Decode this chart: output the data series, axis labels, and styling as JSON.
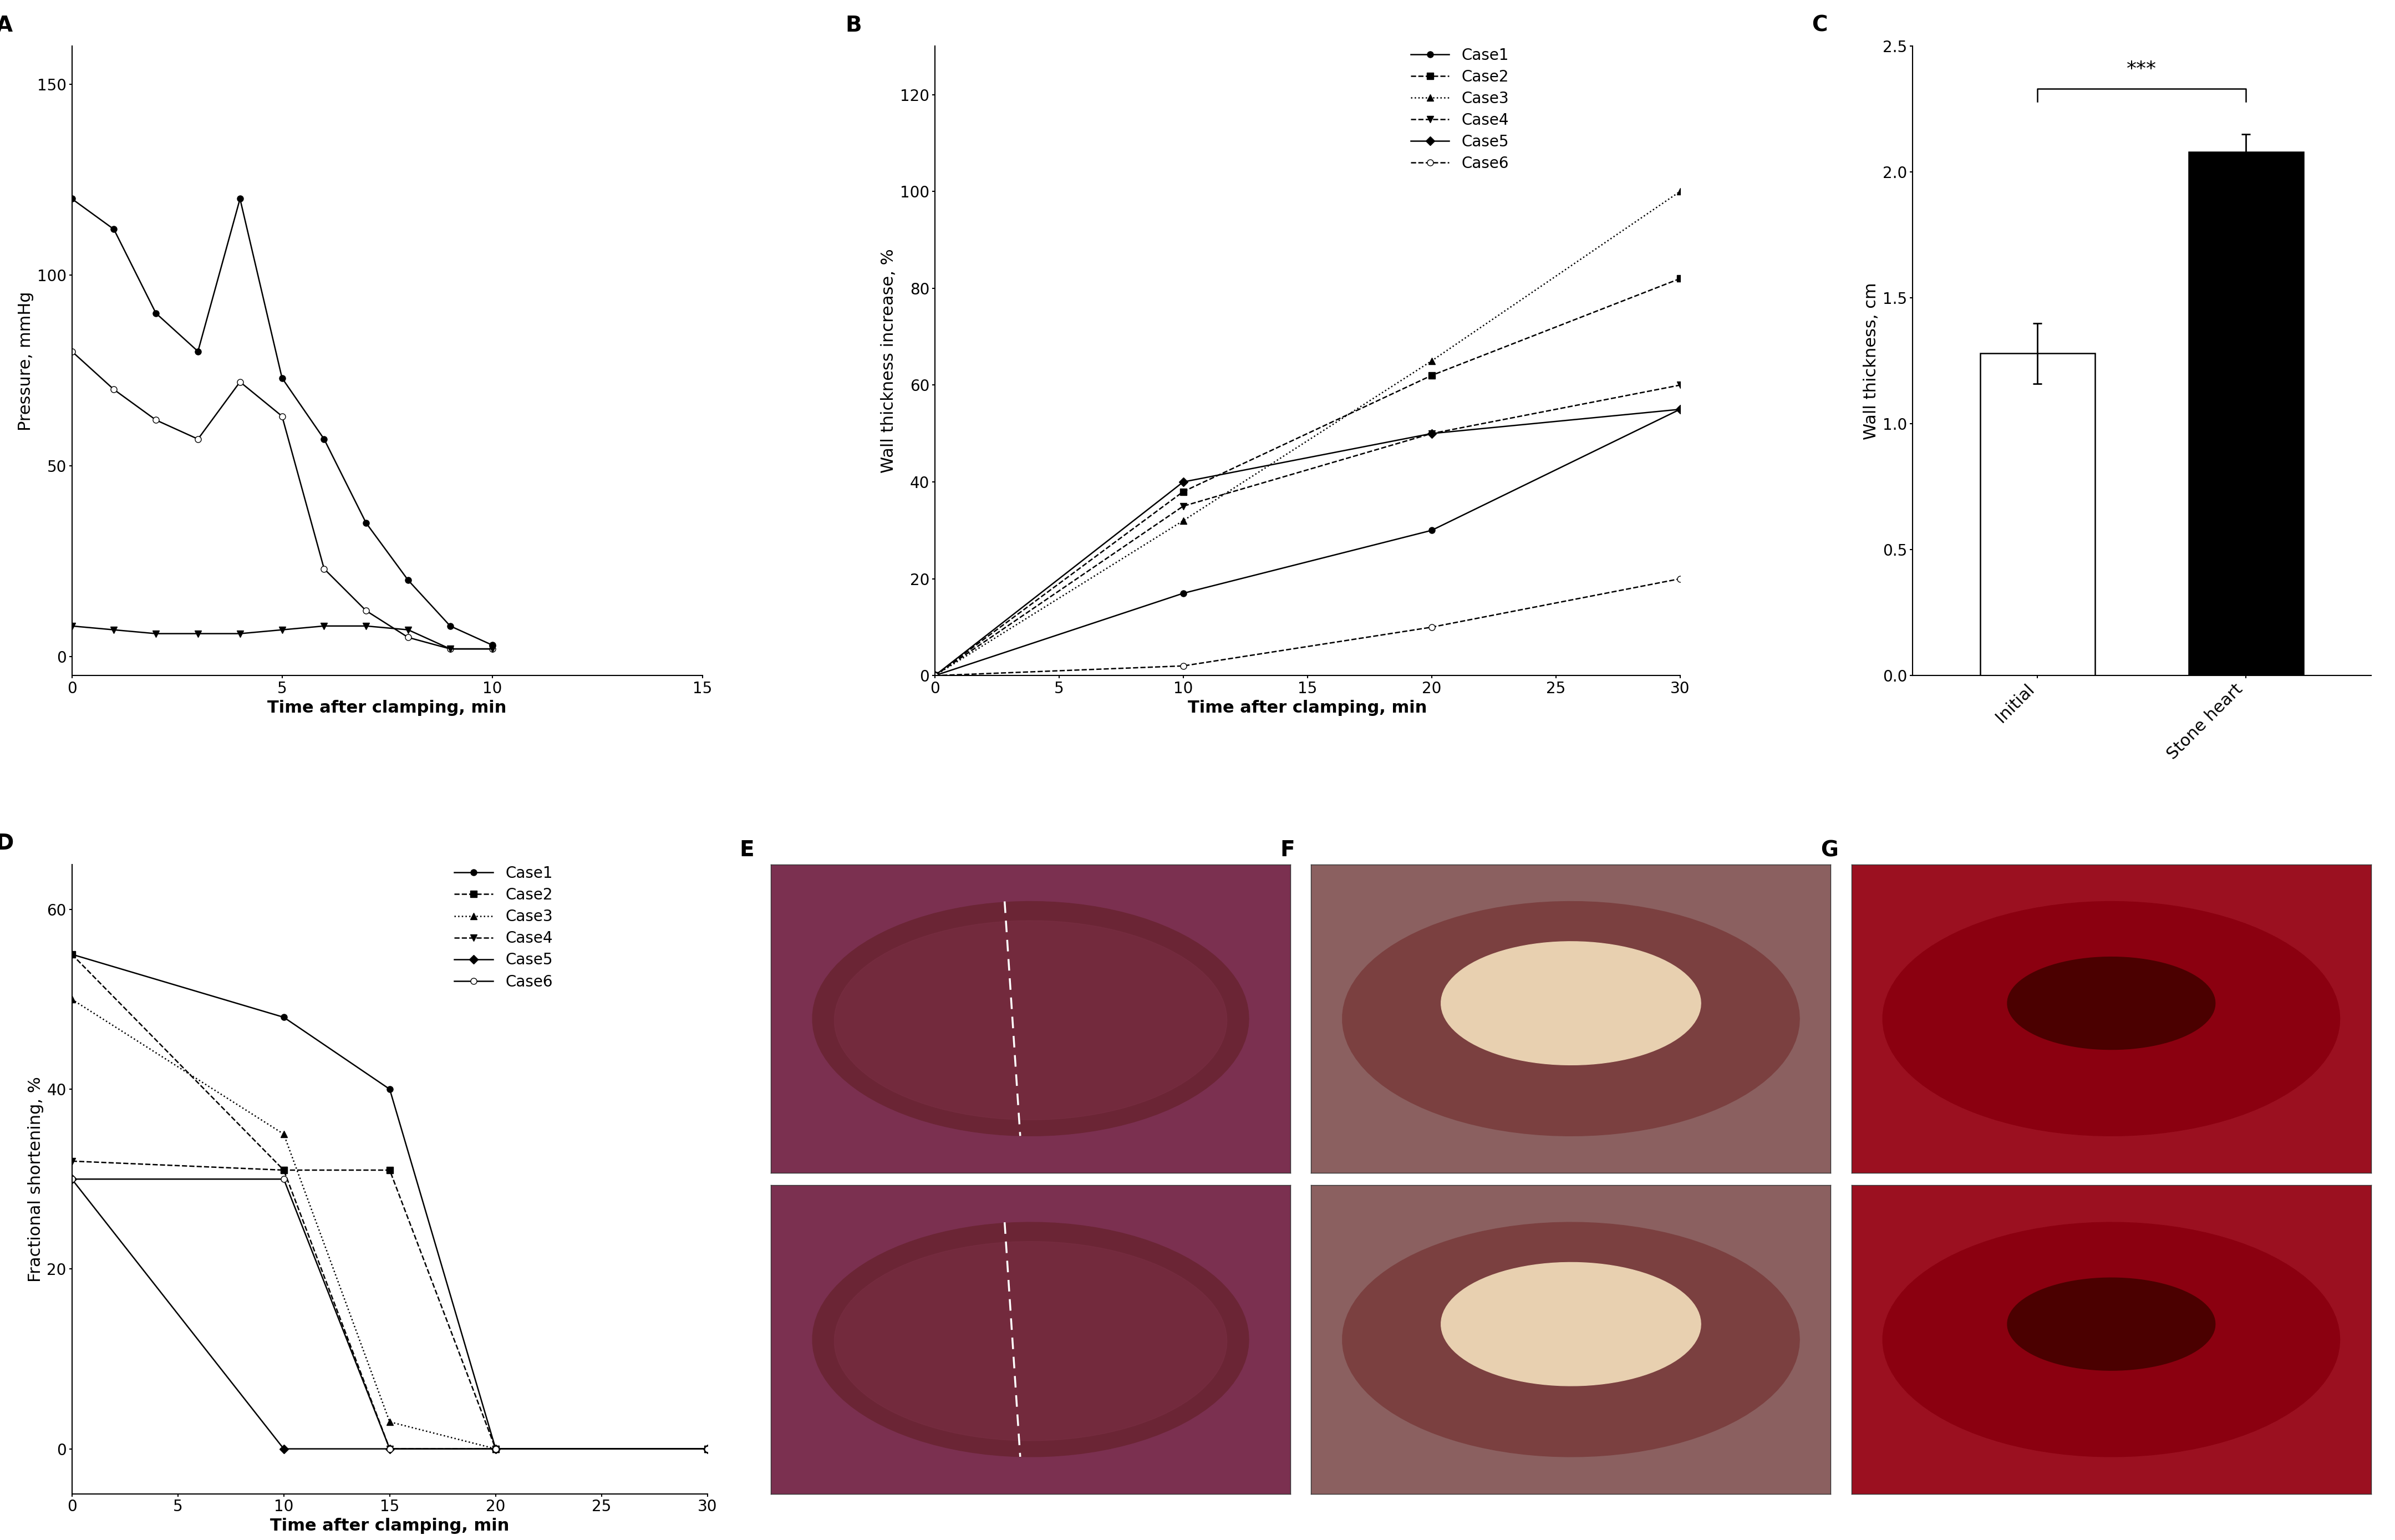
{
  "panel_A": {
    "label": "A",
    "xlabel": "Time after clamping, min",
    "ylabel": "Pressure, mmHg",
    "xlim": [
      0,
      15
    ],
    "ylim": [
      -5,
      160
    ],
    "xticks": [
      0,
      5,
      10,
      15
    ],
    "yticks": [
      0,
      50,
      100,
      150
    ],
    "series": [
      {
        "x": [
          0,
          1,
          2,
          3,
          4,
          5,
          6,
          7,
          8,
          9,
          10
        ],
        "y": [
          120,
          112,
          90,
          80,
          120,
          73,
          57,
          35,
          20,
          8,
          3
        ],
        "marker": "o",
        "markersize": 8,
        "markerfacecolor": "black",
        "linestyle": "-",
        "color": "black",
        "label": "filled_circle"
      },
      {
        "x": [
          0,
          1,
          2,
          3,
          4,
          5,
          6,
          7,
          8,
          9,
          10
        ],
        "y": [
          80,
          70,
          62,
          57,
          72,
          63,
          23,
          12,
          5,
          2,
          2
        ],
        "marker": "o",
        "markersize": 8,
        "markerfacecolor": "white",
        "linestyle": "-",
        "color": "black",
        "label": "open_circle"
      },
      {
        "x": [
          0,
          1,
          2,
          3,
          4,
          5,
          6,
          7,
          8,
          9,
          10
        ],
        "y": [
          8,
          7,
          6,
          6,
          6,
          7,
          8,
          8,
          7,
          2,
          2
        ],
        "marker": "v",
        "markersize": 8,
        "markerfacecolor": "black",
        "linestyle": "-",
        "color": "black",
        "label": "filled_triangle_down"
      }
    ]
  },
  "panel_B": {
    "label": "B",
    "xlabel": "Time after clamping, min",
    "ylabel": "Wall thickness increase, %",
    "xlim": [
      0,
      30
    ],
    "ylim": [
      0,
      130
    ],
    "xticks": [
      0,
      5,
      10,
      15,
      20,
      25,
      30
    ],
    "yticks": [
      0,
      20,
      40,
      60,
      80,
      100,
      120
    ],
    "series": [
      {
        "x": [
          0,
          10,
          20,
          30
        ],
        "y": [
          0,
          17,
          30,
          55
        ],
        "marker": "o",
        "markersize": 8,
        "markerfacecolor": "black",
        "linestyle": "-",
        "color": "black",
        "label": "Case1"
      },
      {
        "x": [
          0,
          10,
          20,
          30
        ],
        "y": [
          0,
          38,
          62,
          82
        ],
        "marker": "s",
        "markersize": 8,
        "markerfacecolor": "black",
        "linestyle": "--",
        "color": "black",
        "label": "Case2"
      },
      {
        "x": [
          0,
          10,
          20,
          30
        ],
        "y": [
          0,
          32,
          65,
          100
        ],
        "marker": "^",
        "markersize": 8,
        "markerfacecolor": "black",
        "linestyle": ":",
        "color": "black",
        "label": "Case3"
      },
      {
        "x": [
          0,
          10,
          20,
          30
        ],
        "y": [
          0,
          35,
          50,
          60
        ],
        "marker": "v",
        "markersize": 8,
        "markerfacecolor": "black",
        "linestyle": "--",
        "color": "black",
        "label": "Case4"
      },
      {
        "x": [
          0,
          10,
          20,
          30
        ],
        "y": [
          0,
          40,
          50,
          55
        ],
        "marker": "D",
        "markersize": 8,
        "markerfacecolor": "black",
        "linestyle": "-",
        "color": "black",
        "label": "Case5"
      },
      {
        "x": [
          0,
          10,
          20,
          30
        ],
        "y": [
          0,
          2,
          10,
          20
        ],
        "marker": "o",
        "markersize": 8,
        "markerfacecolor": "white",
        "linestyle": "--",
        "color": "black",
        "label": "Case6"
      }
    ]
  },
  "panel_C": {
    "label": "C",
    "xlabel": "",
    "ylabel": "Wall thickness, cm",
    "xlabels": [
      "Initial",
      "Stone heart"
    ],
    "values": [
      1.28,
      2.08
    ],
    "errors": [
      0.12,
      0.07
    ],
    "bar_colors": [
      "white",
      "black"
    ],
    "bar_edgecolor": "black",
    "ylim": [
      0,
      2.5
    ],
    "yticks": [
      0.0,
      0.5,
      1.0,
      1.5,
      2.0,
      2.5
    ],
    "significance": "***"
  },
  "panel_D": {
    "label": "D",
    "xlabel": "Time after clamping, min",
    "ylabel": "Fractional shortening, %",
    "xlim": [
      0,
      30
    ],
    "ylim": [
      -5,
      65
    ],
    "xticks": [
      0,
      5,
      10,
      15,
      20,
      25,
      30
    ],
    "yticks": [
      0,
      20,
      40,
      60
    ],
    "series": [
      {
        "x": [
          0,
          10,
          15,
          20,
          30
        ],
        "y": [
          55,
          48,
          40,
          0,
          0
        ],
        "marker": "o",
        "markersize": 8,
        "markerfacecolor": "black",
        "linestyle": "-",
        "color": "black",
        "label": "Case1"
      },
      {
        "x": [
          0,
          10,
          15,
          20,
          30
        ],
        "y": [
          55,
          31,
          31,
          0,
          0
        ],
        "marker": "s",
        "markersize": 8,
        "markerfacecolor": "black",
        "linestyle": "--",
        "color": "black",
        "label": "Case2"
      },
      {
        "x": [
          0,
          10,
          15,
          20,
          30
        ],
        "y": [
          50,
          35,
          3,
          0,
          0
        ],
        "marker": "^",
        "markersize": 8,
        "markerfacecolor": "black",
        "linestyle": ":",
        "color": "black",
        "label": "Case3"
      },
      {
        "x": [
          0,
          10,
          15,
          20,
          30
        ],
        "y": [
          32,
          31,
          0,
          0,
          0
        ],
        "marker": "v",
        "markersize": 8,
        "markerfacecolor": "black",
        "linestyle": "--",
        "color": "black",
        "label": "Case4"
      },
      {
        "x": [
          0,
          10,
          15,
          20,
          30
        ],
        "y": [
          30,
          0,
          0,
          0,
          0
        ],
        "marker": "D",
        "markersize": 8,
        "markerfacecolor": "black",
        "linestyle": "-",
        "color": "black",
        "label": "Case5"
      },
      {
        "x": [
          0,
          10,
          15,
          20,
          30
        ],
        "y": [
          30,
          30,
          0,
          0,
          0
        ],
        "marker": "o",
        "markersize": 8,
        "markerfacecolor": "white",
        "linestyle": "-",
        "color": "black",
        "label": "Case6"
      }
    ]
  },
  "photo_colors": {
    "E_top": "#8B4060",
    "E_bottom": "#7B3050",
    "F_top": "#7B3550",
    "F_bottom": "#8B3555",
    "G_top": "#9B2030",
    "G_bottom": "#8B2528"
  },
  "background_color": "#ffffff",
  "font_family": "Arial",
  "label_fontsize": 28,
  "tick_fontsize": 20,
  "axis_label_fontsize": 22,
  "legend_fontsize": 20
}
